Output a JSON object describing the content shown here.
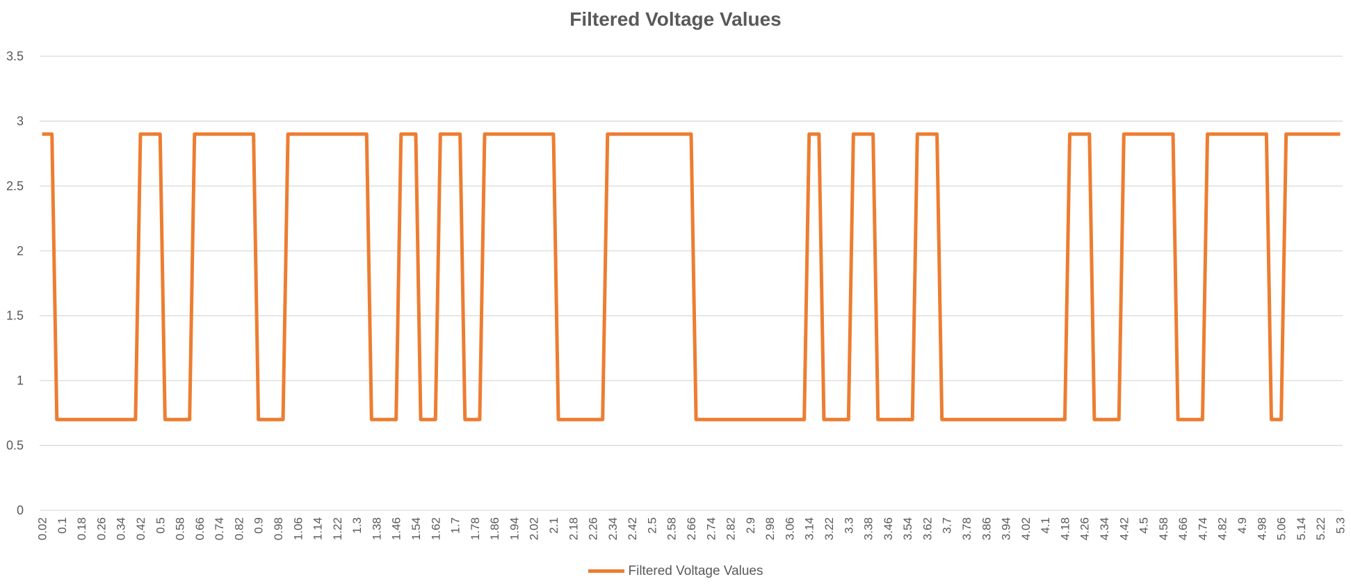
{
  "chart_data": {
    "type": "line",
    "title": "Filtered Voltage Values",
    "xlabel": "",
    "ylabel": "",
    "ylim": [
      0,
      3.5
    ],
    "y_ticks": [
      "0",
      "0.5",
      "1",
      "1.5",
      "2",
      "2.5",
      "3",
      "3.5"
    ],
    "grid": true,
    "legend_position": "bottom",
    "x_axis": {
      "start": 0.02,
      "step": 0.02,
      "count": 265,
      "label_every": 4
    },
    "x_tick_labels": [
      "0.02",
      "0.1",
      "0.18",
      "0.26",
      "0.34",
      "0.42",
      "0.5",
      "0.58",
      "0.66",
      "0.74",
      "0.82",
      "0.9",
      "0.98",
      "1.06",
      "1.14",
      "1.22",
      "1.3",
      "1.38",
      "1.46",
      "1.54",
      "1.62",
      "1.7",
      "1.78",
      "1.86",
      "1.94",
      "2.02",
      "2.1",
      "2.18",
      "2.26",
      "2.34",
      "2.42",
      "2.5",
      "2.58",
      "2.66",
      "2.74",
      "2.82",
      "2.9",
      "2.98",
      "3.06",
      "3.14",
      "3.22",
      "3.3",
      "3.38",
      "3.46",
      "3.54",
      "3.62",
      "3.7",
      "3.78",
      "3.86",
      "3.94",
      "4.02",
      "4.1",
      "4.18",
      "4.26",
      "4.34",
      "4.42",
      "4.5",
      "4.58",
      "4.66",
      "4.74",
      "4.82",
      "4.9",
      "4.98",
      "5.06",
      "5.14",
      "5.22",
      "5.3"
    ],
    "series": [
      {
        "name": "Filtered Voltage Values",
        "color": "#ED7D31",
        "levels": {
          "high": 2.9,
          "low": 0.7
        },
        "segments": [
          {
            "from": 0.02,
            "to": 0.06,
            "value": 2.9
          },
          {
            "from": 0.08,
            "to": 0.4,
            "value": 0.7
          },
          {
            "from": 0.42,
            "to": 0.5,
            "value": 2.9
          },
          {
            "from": 0.52,
            "to": 0.62,
            "value": 0.7
          },
          {
            "from": 0.64,
            "to": 0.88,
            "value": 2.9
          },
          {
            "from": 0.9,
            "to": 1.0,
            "value": 0.7
          },
          {
            "from": 1.02,
            "to": 1.34,
            "value": 2.9
          },
          {
            "from": 1.36,
            "to": 1.46,
            "value": 0.7
          },
          {
            "from": 1.48,
            "to": 1.54,
            "value": 2.9
          },
          {
            "from": 1.56,
            "to": 1.62,
            "value": 0.7
          },
          {
            "from": 1.64,
            "to": 1.72,
            "value": 2.9
          },
          {
            "from": 1.74,
            "to": 1.8,
            "value": 0.7
          },
          {
            "from": 1.82,
            "to": 2.1,
            "value": 2.9
          },
          {
            "from": 2.12,
            "to": 2.3,
            "value": 0.7
          },
          {
            "from": 2.32,
            "to": 2.66,
            "value": 2.9
          },
          {
            "from": 2.68,
            "to": 3.12,
            "value": 0.7
          },
          {
            "from": 3.14,
            "to": 3.18,
            "value": 2.9
          },
          {
            "from": 3.2,
            "to": 3.3,
            "value": 0.7
          },
          {
            "from": 3.32,
            "to": 3.4,
            "value": 2.9
          },
          {
            "from": 3.42,
            "to": 3.56,
            "value": 0.7
          },
          {
            "from": 3.58,
            "to": 3.66,
            "value": 2.9
          },
          {
            "from": 3.68,
            "to": 4.18,
            "value": 0.7
          },
          {
            "from": 4.2,
            "to": 4.28,
            "value": 2.9
          },
          {
            "from": 4.3,
            "to": 4.4,
            "value": 0.7
          },
          {
            "from": 4.42,
            "to": 4.62,
            "value": 2.9
          },
          {
            "from": 4.64,
            "to": 4.74,
            "value": 0.7
          },
          {
            "from": 4.76,
            "to": 5.0,
            "value": 2.9
          },
          {
            "from": 5.02,
            "to": 5.06,
            "value": 0.7
          },
          {
            "from": 5.08,
            "to": 5.3,
            "value": 2.9
          }
        ]
      }
    ]
  }
}
